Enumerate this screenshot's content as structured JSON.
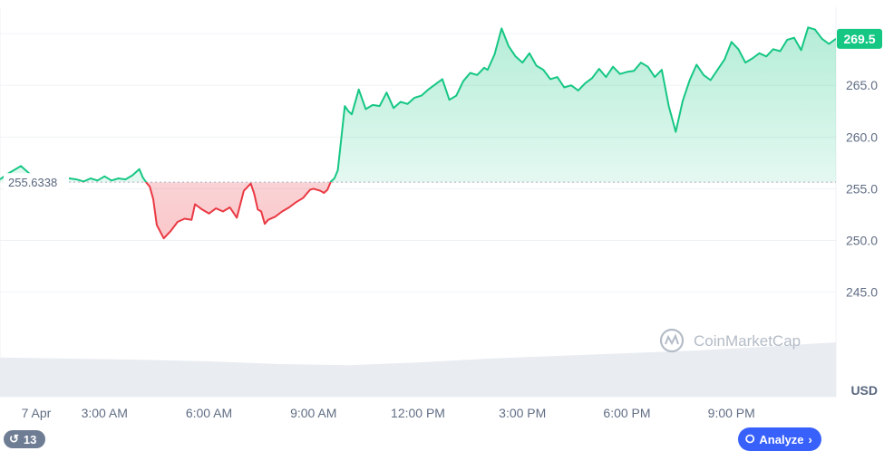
{
  "chart_data": {
    "type": "area",
    "baseline": 255.6338,
    "baseline_label": "255.6338",
    "current_price": 269.5,
    "current_price_label": "269.5",
    "y_unit": "USD",
    "ylim": [
      240.5,
      271.5
    ],
    "y_ticks": [
      "265.0",
      "260.0",
      "255.0",
      "250.0",
      "245.0"
    ],
    "x_ticks": [
      "7 Apr",
      "3:00 AM",
      "6:00 AM",
      "9:00 AM",
      "12:00 PM",
      "3:00 PM",
      "6:00 PM",
      "9:00 PM"
    ],
    "x_hours": [
      0,
      24
    ],
    "colors": {
      "up": "#16c784",
      "down": "#ea3943"
    },
    "grid": true,
    "series": [
      {
        "x": [
          0,
          0.2,
          0.4,
          0.6,
          0.8,
          1.0,
          1.1,
          1.3,
          1.5,
          1.7,
          2.0,
          2.2,
          2.4,
          2.6,
          2.8,
          3.0,
          3.2,
          3.4,
          3.6,
          3.8,
          4.0,
          4.1,
          4.2,
          4.3,
          4.4,
          4.5,
          4.7,
          4.9,
          5.1,
          5.3,
          5.5,
          5.6,
          5.8,
          6.0,
          6.2,
          6.4,
          6.6,
          6.8,
          7.0,
          7.2,
          7.3,
          7.4,
          7.5,
          7.6,
          7.7,
          7.9,
          8.1,
          8.3,
          8.5,
          8.7,
          8.9,
          9.0,
          9.2,
          9.3,
          9.4,
          9.5,
          9.6,
          9.7,
          9.9,
          10.0,
          10.1,
          10.3,
          10.5,
          10.7,
          10.9,
          11.1,
          11.3,
          11.5,
          11.7,
          11.9,
          12.1,
          12.3,
          12.5,
          12.7,
          12.9,
          13.1,
          13.3,
          13.5,
          13.7,
          13.9,
          14.0,
          14.2,
          14.4,
          14.6,
          14.8,
          15.0,
          15.2,
          15.4,
          15.6,
          15.8,
          16.0,
          16.2,
          16.4,
          16.6,
          16.8,
          17.0,
          17.2,
          17.4,
          17.6,
          17.8,
          18.0,
          18.2,
          18.4,
          18.6,
          18.8,
          19.0,
          19.2,
          19.4,
          19.6,
          19.8,
          20.0,
          20.2,
          20.4,
          20.6,
          20.8,
          21.0,
          21.2,
          21.4,
          21.6,
          21.8,
          22.0,
          22.2,
          22.4,
          22.6,
          22.8,
          23.0,
          23.2,
          23.4,
          23.6,
          23.8,
          24.0
        ],
        "y": [
          255.9,
          256.4,
          256.8,
          257.2,
          256.6,
          256.0,
          255.8,
          255.0,
          255.5,
          255.8,
          256.0,
          255.9,
          255.7,
          256.0,
          255.8,
          256.2,
          255.8,
          256.0,
          255.9,
          256.3,
          256.9,
          256.1,
          255.6,
          255.2,
          254.0,
          251.5,
          250.2,
          250.9,
          251.8,
          252.1,
          252.0,
          253.5,
          253.0,
          252.6,
          253.1,
          252.8,
          253.2,
          252.2,
          254.8,
          255.5,
          254.5,
          253.0,
          252.8,
          251.6,
          252.0,
          252.3,
          252.8,
          253.2,
          253.7,
          254.1,
          254.9,
          255.0,
          254.8,
          254.6,
          254.9,
          255.7,
          256.0,
          256.8,
          263.0,
          262.5,
          262.2,
          264.6,
          262.7,
          263.1,
          263.0,
          264.3,
          262.8,
          263.4,
          263.2,
          263.8,
          264.0,
          264.6,
          265.1,
          265.6,
          263.6,
          264.0,
          265.4,
          266.2,
          266.0,
          266.7,
          266.5,
          268.0,
          270.5,
          268.8,
          267.8,
          267.2,
          268.1,
          266.9,
          266.5,
          265.6,
          265.8,
          264.8,
          265.0,
          264.5,
          265.2,
          265.7,
          266.6,
          265.8,
          266.8,
          266.1,
          266.3,
          266.4,
          267.2,
          266.8,
          265.8,
          266.5,
          263.0,
          260.5,
          263.5,
          265.5,
          267.0,
          266.0,
          265.5,
          266.5,
          267.5,
          269.2,
          268.5,
          267.2,
          267.6,
          268.1,
          267.8,
          268.5,
          268.3,
          269.4,
          269.6,
          268.4,
          270.6,
          270.4,
          269.5,
          269.0,
          269.5
        ]
      }
    ],
    "volume": {
      "x": [
        0,
        2,
        4,
        6,
        8,
        10,
        12,
        14,
        16,
        18,
        20,
        22,
        24
      ],
      "level": [
        0.72,
        0.7,
        0.68,
        0.65,
        0.6,
        0.58,
        0.63,
        0.7,
        0.75,
        0.8,
        0.85,
        0.92,
        1.0
      ]
    }
  },
  "ui": {
    "watermark": "CoinMarketCap",
    "history_count": "13",
    "analyze_label": "Analyze"
  }
}
